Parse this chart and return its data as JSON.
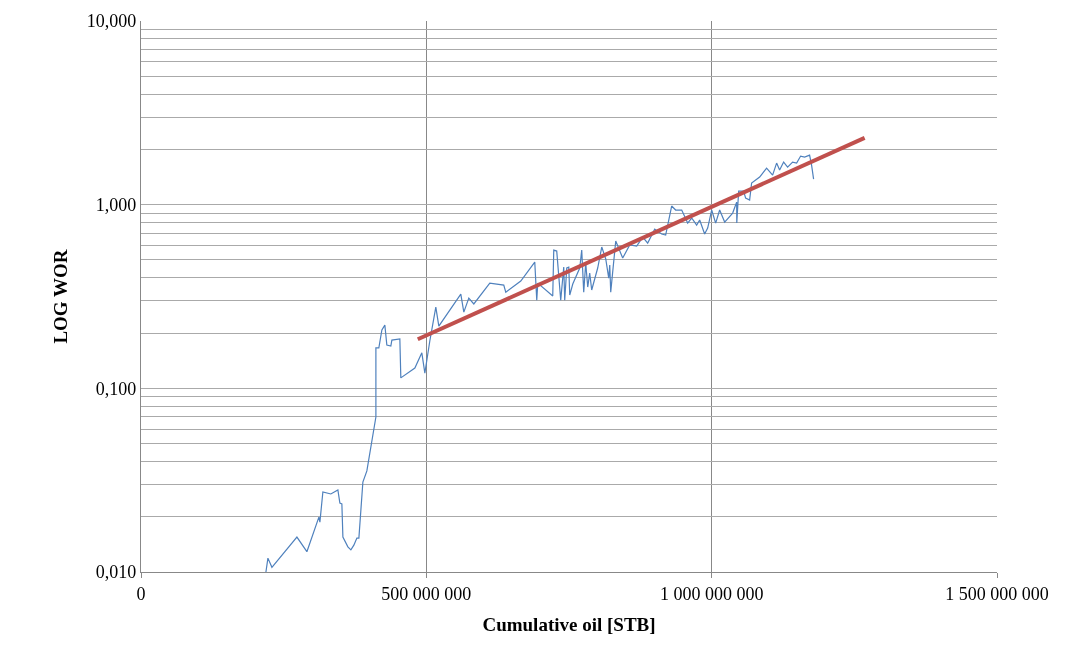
{
  "chart_data": {
    "type": "line",
    "xlabel": "Cumulative oil [STB]",
    "ylabel": "LOG WOR",
    "log": "y",
    "grid": true,
    "marker": "none",
    "xlim": [
      0,
      1500000000
    ],
    "xticks": [
      {
        "value": 0,
        "label": "0"
      },
      {
        "value": 500000000,
        "label": "500 000 000"
      },
      {
        "value": 1000000000,
        "label": "1 000 000 000"
      },
      {
        "value": 1500000000,
        "label": "1 500 000 000"
      }
    ],
    "ylim": [
      0.01,
      10
    ],
    "yticks": [
      {
        "value": 0.01,
        "label": "0,010"
      },
      {
        "value": 0.02,
        "label": null
      },
      {
        "value": 0.03,
        "label": null
      },
      {
        "value": 0.04,
        "label": null
      },
      {
        "value": 0.05,
        "label": null
      },
      {
        "value": 0.06,
        "label": null
      },
      {
        "value": 0.07,
        "label": null
      },
      {
        "value": 0.08,
        "label": null
      },
      {
        "value": 0.09,
        "label": null
      },
      {
        "value": 0.1,
        "label": "0,100"
      },
      {
        "value": 0.2,
        "label": null
      },
      {
        "value": 0.3,
        "label": null
      },
      {
        "value": 0.4,
        "label": null
      },
      {
        "value": 0.5,
        "label": null
      },
      {
        "value": 0.6,
        "label": null
      },
      {
        "value": 0.7,
        "label": null
      },
      {
        "value": 0.8,
        "label": null
      },
      {
        "value": 0.9,
        "label": null
      },
      {
        "value": 1,
        "label": "1,000"
      },
      {
        "value": 2,
        "label": null
      },
      {
        "value": 3,
        "label": null
      },
      {
        "value": 4,
        "label": null
      },
      {
        "value": 5,
        "label": null
      },
      {
        "value": 6,
        "label": null
      },
      {
        "value": 7,
        "label": null
      },
      {
        "value": 8,
        "label": null
      },
      {
        "value": 9,
        "label": null
      },
      {
        "value": 10,
        "label": "10,000"
      }
    ],
    "series": [
      {
        "color": "#4f81bd",
        "line_style": "solid",
        "x": [
          218900000,
          222400000,
          229400000,
          273200000,
          290700000,
          311700000,
          313500000,
          318700000,
          332700000,
          345000000,
          348500000,
          352000000,
          353800000,
          362500000,
          367800000,
          373000000,
          378300000,
          381800000,
          388800000,
          395800000,
          411600000,
          411600000,
          416800000,
          422100000,
          427300000,
          430800000,
          437800000,
          439600000,
          453600000,
          455300000,
          479900000,
          492100000,
          497400000,
          506100000,
          516600000,
          521900000,
          560400000,
          565700000,
          574400000,
          583200000,
          611200000,
          635700000,
          639200000,
          665500000,
          690000000,
          693500000,
          695300000,
          721500000,
          723300000,
          728500000,
          735500000,
          740800000,
          742500000,
          746100000,
          749600000,
          751300000,
          756600000,
          768800000,
          772300000,
          775800000,
          779300000,
          782800000,
          786300000,
          789800000,
          800300000,
          807400000,
          814400000,
          819600000,
          821400000,
          823100000,
          831900000,
          844100000,
          856400000,
          868600000,
          879200000,
          887900000,
          900200000,
          912400000,
          919400000,
          929900000,
          936900000,
          947500000,
          958000000,
          965000000,
          973700000,
          979000000,
          987700000,
          993000000,
          1000000000,
          1007000000,
          1014000000,
          1022800000,
          1036800000,
          1043800000,
          1044000000,
          1047300000,
          1056000000,
          1059500000,
          1066500000,
          1070000000,
          1084100000,
          1096300000,
          1106800000,
          1113800000,
          1119100000,
          1126100000,
          1133100000,
          1141800000,
          1148900000,
          1155900000,
          1162900000,
          1171600000,
          1175100000,
          1178600000
        ],
        "values": [
          0.01,
          0.0119,
          0.0106,
          0.0155,
          0.0129,
          0.0199,
          0.0187,
          0.0273,
          0.0266,
          0.028,
          0.0237,
          0.0235,
          0.0155,
          0.0137,
          0.0132,
          0.014,
          0.0153,
          0.0153,
          0.0309,
          0.0355,
          0.0698,
          0.166,
          0.166,
          0.208,
          0.221,
          0.172,
          0.17,
          0.183,
          0.186,
          0.114,
          0.129,
          0.156,
          0.121,
          0.181,
          0.277,
          0.218,
          0.326,
          0.26,
          0.31,
          0.288,
          0.374,
          0.365,
          0.334,
          0.384,
          0.487,
          0.302,
          0.374,
          0.318,
          0.566,
          0.559,
          0.302,
          0.457,
          0.302,
          0.452,
          0.457,
          0.322,
          0.37,
          0.452,
          0.566,
          0.334,
          0.481,
          0.356,
          0.424,
          0.343,
          0.452,
          0.588,
          0.506,
          0.398,
          0.469,
          0.334,
          0.634,
          0.512,
          0.603,
          0.595,
          0.666,
          0.618,
          0.736,
          0.692,
          0.683,
          0.983,
          0.935,
          0.935,
          0.794,
          0.846,
          0.774,
          0.825,
          0.692,
          0.746,
          0.935,
          0.794,
          0.935,
          0.804,
          0.9,
          1.033,
          0.794,
          1.186,
          1.186,
          1.086,
          1.059,
          1.311,
          1.413,
          1.582,
          1.449,
          1.684,
          1.543,
          1.706,
          1.602,
          1.706,
          1.684,
          1.839,
          1.816,
          1.862,
          1.643,
          1.378
        ]
      },
      {
        "color": "#c0504d",
        "line_style": "solid",
        "x": [
          485000000,
          1268000000
        ],
        "values": [
          0.185,
          2.31
        ]
      }
    ]
  }
}
